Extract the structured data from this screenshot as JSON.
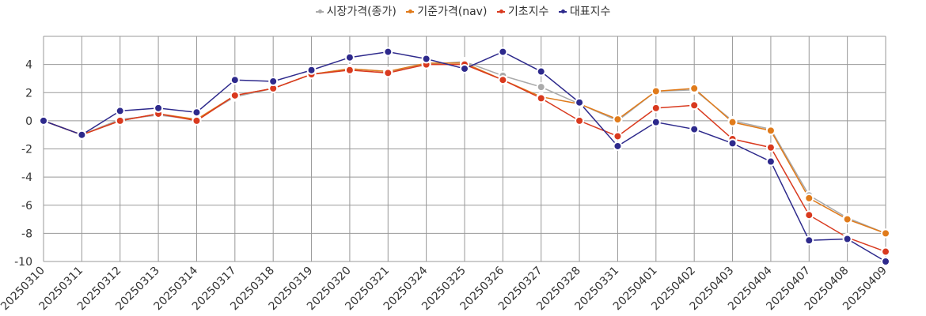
{
  "chart_data": {
    "type": "line",
    "title": "",
    "xlabel": "",
    "ylabel": "",
    "ylim": [
      -10,
      6
    ],
    "yticks": [
      -10,
      -8,
      -6,
      -4,
      -2,
      0,
      2,
      4
    ],
    "legend_position": "top-center",
    "grid": true,
    "categories": [
      "20250310",
      "20250311",
      "20250312",
      "20250313",
      "20250314",
      "20250317",
      "20250318",
      "20250319",
      "20250320",
      "20250321",
      "20250324",
      "20250325",
      "20250326",
      "20250327",
      "20250328",
      "20250331",
      "20250401",
      "20250402",
      "20250403",
      "20250404",
      "20250407",
      "20250408",
      "20250409"
    ],
    "series": [
      {
        "name": "시장가격(종가)",
        "color": "#aaaaaa",
        "values": [
          0.0,
          -1.0,
          0.1,
          0.4,
          0.1,
          1.7,
          2.3,
          3.3,
          3.7,
          3.5,
          4.0,
          4.2,
          3.2,
          2.4,
          1.2,
          0.0,
          2.1,
          2.2,
          0.0,
          -0.6,
          -5.3,
          -6.9,
          -8.0
        ]
      },
      {
        "name": "기준가격(nav)",
        "color": "#e07b1b",
        "values": [
          0.0,
          -1.0,
          0.0,
          0.5,
          0.1,
          1.8,
          2.3,
          3.3,
          3.7,
          3.5,
          4.1,
          4.1,
          2.9,
          1.7,
          1.2,
          0.1,
          2.1,
          2.3,
          -0.1,
          -0.7,
          -5.5,
          -7.0,
          -8.0
        ]
      },
      {
        "name": "기초지수",
        "color": "#d93a1f",
        "values": [
          0.0,
          -1.0,
          0.0,
          0.5,
          0.0,
          1.8,
          2.3,
          3.3,
          3.6,
          3.4,
          4.0,
          4.0,
          2.9,
          1.6,
          0.0,
          -1.1,
          0.9,
          1.1,
          -1.3,
          -1.9,
          -6.7,
          -8.3,
          -9.3
        ]
      },
      {
        "name": "대표지수",
        "color": "#2e2a8c",
        "values": [
          0.0,
          -1.0,
          0.7,
          0.9,
          0.6,
          2.9,
          2.8,
          3.6,
          4.5,
          4.9,
          4.4,
          3.7,
          4.9,
          3.5,
          1.3,
          -1.8,
          -0.1,
          -0.6,
          -1.6,
          -2.9,
          -8.5,
          -8.4,
          -10.0
        ]
      }
    ]
  }
}
